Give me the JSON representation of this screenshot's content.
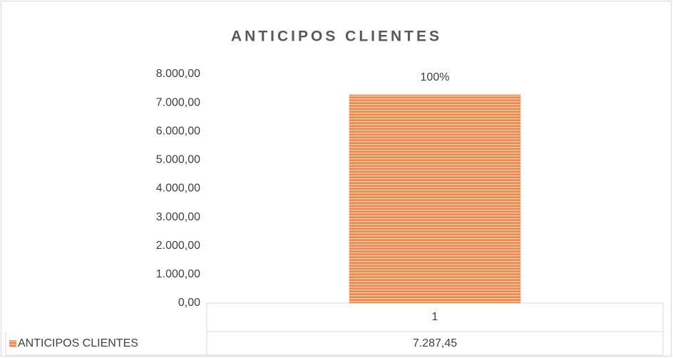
{
  "chart_data": {
    "type": "bar",
    "title": "ANTICIPOS CLIENTES",
    "categories": [
      "1"
    ],
    "series": [
      {
        "name": "ANTICIPOS CLIENTES",
        "color": "#f08a4b",
        "values": [
          7287.45
        ],
        "value_labels": [
          "7.287,45"
        ],
        "percents": [
          100
        ],
        "percent_labels": [
          "100%"
        ]
      }
    ],
    "ylim": [
      0,
      8000
    ],
    "yticks": [
      {
        "value": 0,
        "label": "0,00"
      },
      {
        "value": 1000,
        "label": "1.000,00"
      },
      {
        "value": 2000,
        "label": "2.000,00"
      },
      {
        "value": 3000,
        "label": "3.000,00"
      },
      {
        "value": 4000,
        "label": "4.000,00"
      },
      {
        "value": 5000,
        "label": "5.000,00"
      },
      {
        "value": 6000,
        "label": "6.000,00"
      },
      {
        "value": 7000,
        "label": "7.000,00"
      },
      {
        "value": 8000,
        "label": "8.000,00"
      }
    ],
    "grid": false,
    "data_table": true
  }
}
